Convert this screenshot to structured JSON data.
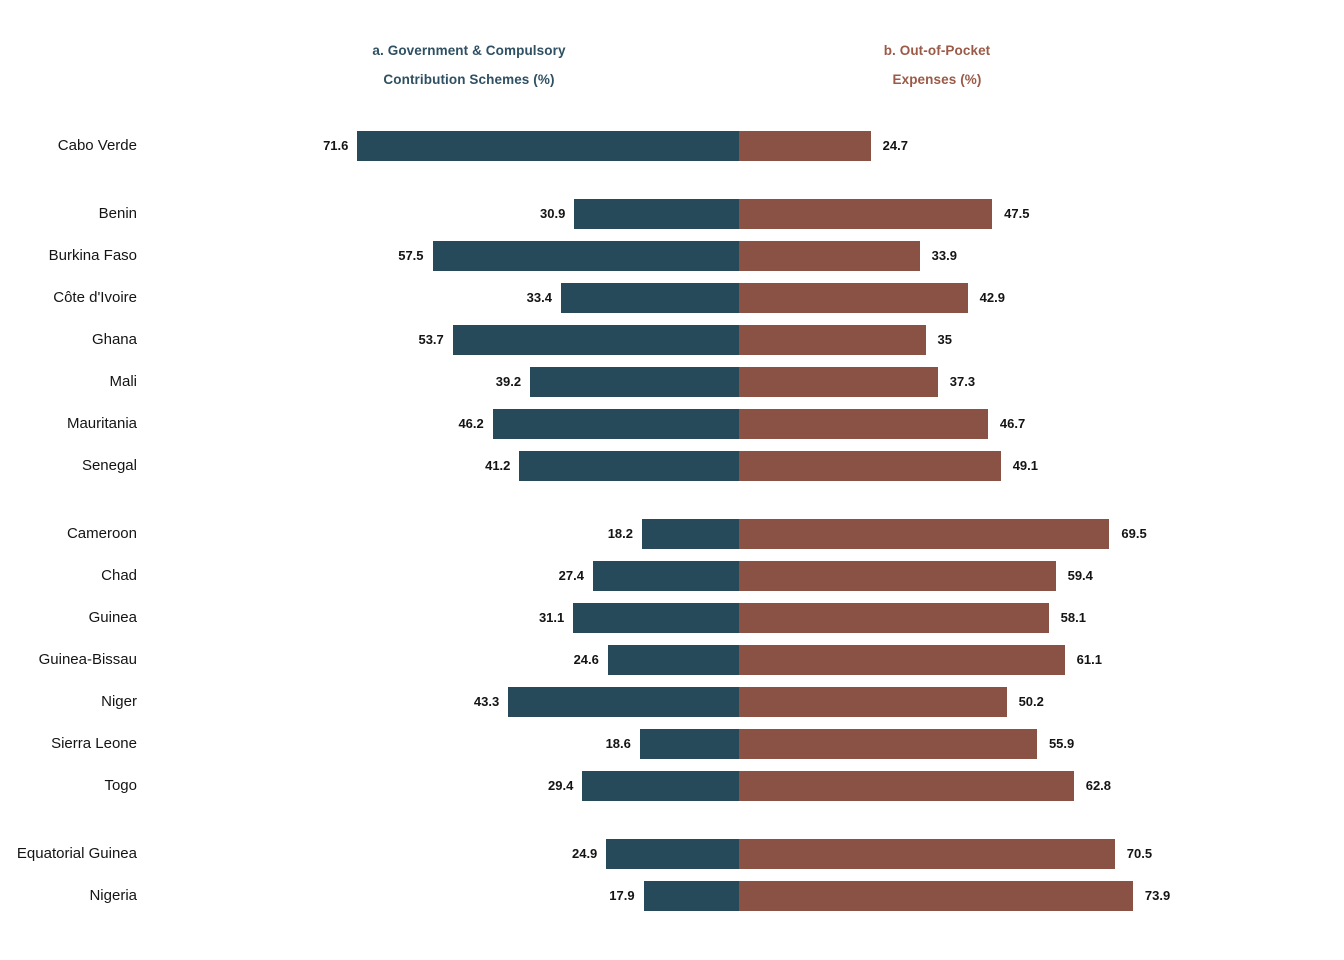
{
  "page": {
    "background": "#ffffff"
  },
  "headers": {
    "left": {
      "line1": "a. Government & Compulsory",
      "line2": "Contribution Schemes (%)",
      "color": "#2E5062"
    },
    "right": {
      "line1": "b. Out-of-Pocket",
      "line2": "Expenses (%)",
      "color": "#9B5A47"
    }
  },
  "colors": {
    "gov_bar": "#264A5A",
    "oop_bar": "#8A5145",
    "label_text": "#141414"
  },
  "chart_data": {
    "type": "bar",
    "subtype": "diverging-horizontal-butterfly",
    "title": "",
    "xlabel": "",
    "ylabel": "",
    "grid": false,
    "legend_position": "top",
    "value_labels_shown": true,
    "axis_max_each_side": 80,
    "series": [
      {
        "name": "a. Government & Compulsory Contribution Schemes (%)",
        "side": "left",
        "color": "#264A5A"
      },
      {
        "name": "b. Out-of-Pocket Expenses (%)",
        "side": "right",
        "color": "#8A5145"
      }
    ],
    "groups": [
      {
        "countries": [
          {
            "name": "Cabo Verde",
            "gov": 71.6,
            "oop": 24.7
          }
        ]
      },
      {
        "countries": [
          {
            "name": "Benin",
            "gov": 30.9,
            "oop": 47.5
          },
          {
            "name": "Burkina Faso",
            "gov": 57.5,
            "oop": 33.9
          },
          {
            "name": "Côte d'Ivoire",
            "gov": 33.4,
            "oop": 42.9
          },
          {
            "name": "Ghana",
            "gov": 53.7,
            "oop": 35
          },
          {
            "name": "Mali",
            "gov": 39.2,
            "oop": 37.3
          },
          {
            "name": "Mauritania",
            "gov": 46.2,
            "oop": 46.7
          },
          {
            "name": "Senegal",
            "gov": 41.2,
            "oop": 49.1
          }
        ]
      },
      {
        "countries": [
          {
            "name": "Cameroon",
            "gov": 18.2,
            "oop": 69.5
          },
          {
            "name": "Chad",
            "gov": 27.4,
            "oop": 59.4
          },
          {
            "name": "Guinea",
            "gov": 31.1,
            "oop": 58.1
          },
          {
            "name": "Guinea-Bissau",
            "gov": 24.6,
            "oop": 61.1
          },
          {
            "name": "Niger",
            "gov": 43.3,
            "oop": 50.2
          },
          {
            "name": "Sierra Leone",
            "gov": 18.6,
            "oop": 55.9
          },
          {
            "name": "Togo",
            "gov": 29.4,
            "oop": 62.8
          }
        ]
      },
      {
        "countries": [
          {
            "name": "Equatorial Guinea",
            "gov": 24.9,
            "oop": 70.5
          },
          {
            "name": "Nigeria",
            "gov": 17.9,
            "oop": 73.9
          }
        ]
      }
    ]
  }
}
